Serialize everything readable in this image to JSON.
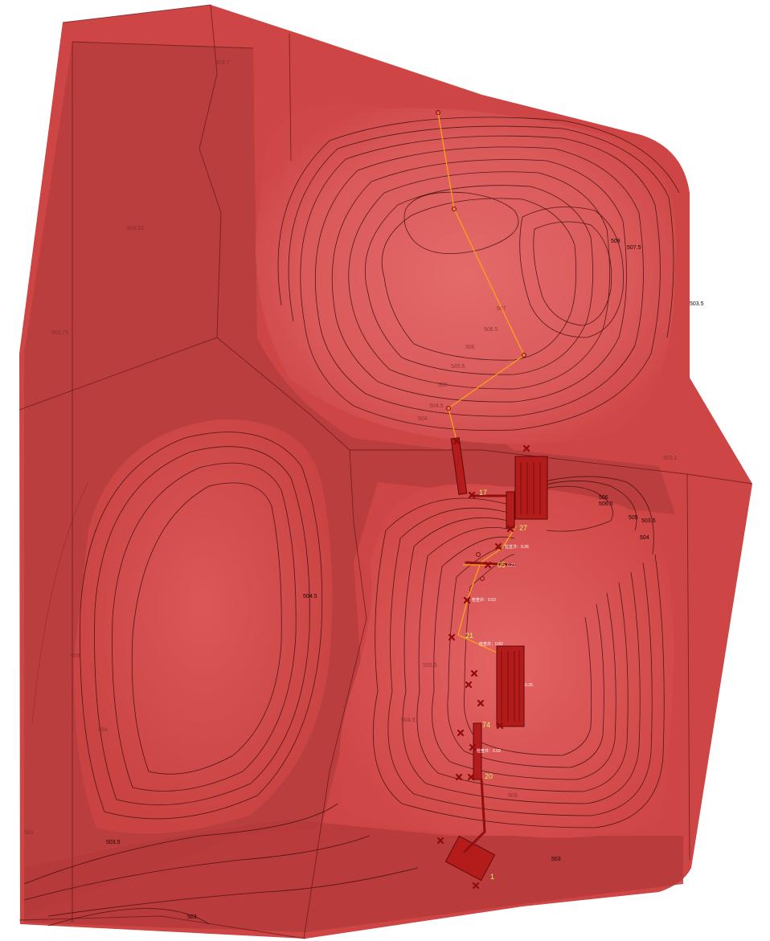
{
  "colors": {
    "terrain": "#cf4545",
    "terrain_dark": "#b43a3a",
    "terrain_light": "#e06060",
    "contour": "#3a0d0d",
    "pipe": "#f7a21b",
    "marker": "#8e0c0c",
    "id_label": "#d9f06a"
  },
  "contour_labels": {
    "c508": "508",
    "c507_5": "507.5",
    "c503_5_east": "503.5",
    "c506_5_a": "506.5",
    "c506_a": "506",
    "c505_5_a": "505.5",
    "c505_a": "505",
    "c504_5_a": "504.5",
    "c504_a": "504",
    "c507_north": "507",
    "c506_b": "506",
    "c506_5_b": "506.5",
    "c505_b": "505",
    "c503_5_b": "503.5",
    "c504_b": "504",
    "c504_5_west": "504.5",
    "c503_west": "503",
    "c504_sw": "504",
    "c503_5_south": "503.5",
    "c503_se": "503",
    "c503_bottom": "503",
    "c505_5_mid": "505.5",
    "c504_5_mid": "504.5",
    "c503_mid": "503",
    "c503_left": "503",
    "c503_1_right": "503.1",
    "c503_92_faint": "503.92",
    "c503_75_faint": "503.75",
    "c503_7_faint": "503.7"
  },
  "pipe_labels": {
    "id_17": "17",
    "id_27": "27",
    "id_05": "05",
    "id_21": "21",
    "id_74": "74",
    "id_20": "20",
    "id_1": "1"
  },
  "slope_labels": {
    "s1": "检查井：0.26",
    "s2": "0.23",
    "s3": "检查井：0.53",
    "s4": "检查井：0.82",
    "s5": "0.26",
    "s6": "检查井：0.59"
  },
  "icons": {
    "marker_icon": "x-mark-icon",
    "node_icon": "manhole-node-icon",
    "structure_icon": "building-structure-icon"
  }
}
